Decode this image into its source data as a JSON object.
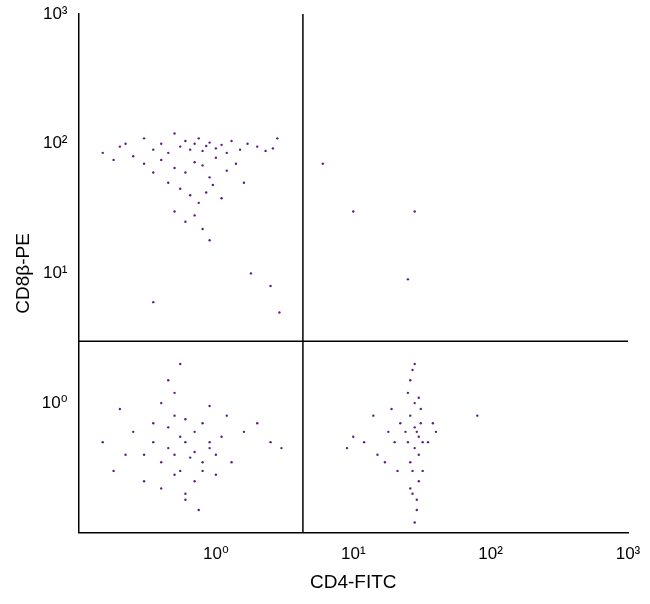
{
  "chart_data": {
    "type": "scatter",
    "x_label": "CD4-FITC",
    "y_label": "CD8β-PE",
    "log": true,
    "grid": false,
    "color": "#5e1f85",
    "marker": "dot",
    "xlim": [
      0.1,
      1000
    ],
    "ylim": [
      0.1,
      1000
    ],
    "xticks": [
      {
        "value": 1,
        "label": "10⁰"
      },
      {
        "value": 10,
        "label": "10¹"
      },
      {
        "value": 100,
        "label": "10²"
      },
      {
        "value": 1000,
        "label": "10³"
      }
    ],
    "yticks": [
      {
        "value": 1,
        "label": "10⁰"
      },
      {
        "value": 10,
        "label": "10¹"
      },
      {
        "value": 100,
        "label": "10²"
      },
      {
        "value": 1000,
        "label": "10³"
      }
    ],
    "gates": {
      "x": 4.3,
      "y": 3.0
    },
    "x": [
      0.2,
      0.25,
      0.3,
      0.35,
      0.4,
      0.45,
      0.5,
      0.55,
      0.6,
      0.65,
      0.7,
      0.75,
      0.8,
      0.85,
      0.9,
      1.0,
      1.1,
      1.2,
      1.3,
      1.5,
      1.7,
      2.0,
      2.3,
      2.6,
      0.3,
      0.4,
      0.5,
      0.6,
      0.7,
      0.8,
      0.9,
      1.0,
      1.2,
      1.4,
      0.45,
      0.55,
      0.65,
      0.75,
      0.85,
      0.95,
      1.1,
      0.5,
      0.6,
      0.7,
      0.8,
      0.35,
      0.9,
      0.15,
      0.18,
      0.22,
      1.6,
      2.8,
      0.35,
      1.8,
      2.5,
      2.9,
      0.3,
      0.35,
      0.4,
      0.45,
      0.5,
      0.55,
      0.6,
      0.65,
      0.7,
      0.8,
      0.9,
      1.0,
      0.25,
      0.35,
      0.45,
      0.5,
      0.55,
      0.6,
      0.7,
      0.8,
      0.9,
      1.1,
      0.3,
      0.4,
      0.5,
      0.6,
      0.7,
      0.8,
      1.0,
      1.3,
      0.2,
      0.4,
      0.5,
      0.6,
      0.75,
      0.9,
      1.2,
      1.6,
      0.15,
      0.18,
      0.22,
      2.0,
      2.5,
      3.0,
      0.45,
      0.55,
      25,
      26,
      27,
      28,
      29,
      30,
      31,
      32,
      25,
      27,
      29,
      31,
      26,
      28,
      30,
      24,
      26,
      28,
      30,
      32,
      20,
      22,
      18,
      15,
      12,
      10,
      14,
      17,
      19,
      21,
      27,
      28,
      29,
      30,
      26,
      28,
      35,
      38,
      40,
      9,
      80,
      6,
      10,
      28,
      25
    ],
    "values": [
      95,
      80,
      110,
      90,
      100,
      85,
      120,
      95,
      105,
      90,
      100,
      110,
      88,
      96,
      102,
      92,
      98,
      85,
      105,
      90,
      100,
      95,
      88,
      92,
      70,
      75,
      65,
      60,
      72,
      68,
      55,
      78,
      62,
      70,
      50,
      45,
      40,
      35,
      42,
      48,
      38,
      30,
      25,
      28,
      22,
      60,
      18,
      85,
      75,
      100,
      50,
      110,
      6,
      10,
      8,
      5,
      0.4,
      0.5,
      0.35,
      0.45,
      0.4,
      0.3,
      0.5,
      0.38,
      0.42,
      0.35,
      0.45,
      0.4,
      0.6,
      0.7,
      0.65,
      0.8,
      0.55,
      0.75,
      0.6,
      0.7,
      0.5,
      0.55,
      0.25,
      0.22,
      0.28,
      0.2,
      0.25,
      0.3,
      0.28,
      0.35,
      0.9,
      1.0,
      1.2,
      0.18,
      0.15,
      0.95,
      0.8,
      0.6,
      0.5,
      0.3,
      0.4,
      0.7,
      0.5,
      0.45,
      1.5,
      2.0,
      0.5,
      0.8,
      0.3,
      1.0,
      0.6,
      0.4,
      0.7,
      0.5,
      1.2,
      0.2,
      0.15,
      0.9,
      0.35,
      0.45,
      0.25,
      0.6,
      1.5,
      0.12,
      0.55,
      0.3,
      0.5,
      0.7,
      0.6,
      0.4,
      0.5,
      0.55,
      0.8,
      0.35,
      0.9,
      0.3,
      1.8,
      2.0,
      0.18,
      1.1,
      0.22,
      0.65,
      0.5,
      0.7,
      0.6,
      0.45,
      0.8,
      70,
      30,
      30,
      9
    ]
  }
}
